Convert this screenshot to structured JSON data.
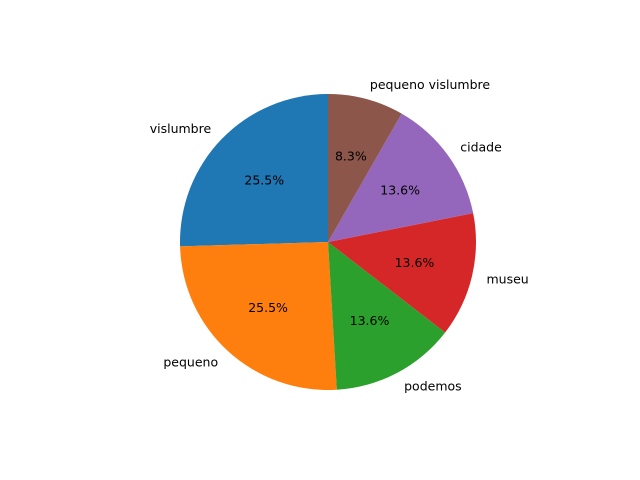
{
  "chart_data": {
    "type": "pie",
    "title": "",
    "start_angle_deg": 90,
    "direction": "counterclockwise",
    "slices": [
      {
        "label": "vislumbre",
        "value": 25.5,
        "pct_label": "25.5%",
        "color": "#1f77b4"
      },
      {
        "label": "pequeno",
        "value": 25.5,
        "pct_label": "25.5%",
        "color": "#ff7f0e"
      },
      {
        "label": "podemos",
        "value": 13.6,
        "pct_label": "13.6%",
        "color": "#2ca02c"
      },
      {
        "label": "museu",
        "value": 13.6,
        "pct_label": "13.6%",
        "color": "#d62728"
      },
      {
        "label": "cidade",
        "value": 13.6,
        "pct_label": "13.6%",
        "color": "#9467bd"
      },
      {
        "label": "pequeno vislumbre",
        "value": 8.3,
        "pct_label": "8.3%",
        "color": "#8c564b"
      }
    ]
  }
}
